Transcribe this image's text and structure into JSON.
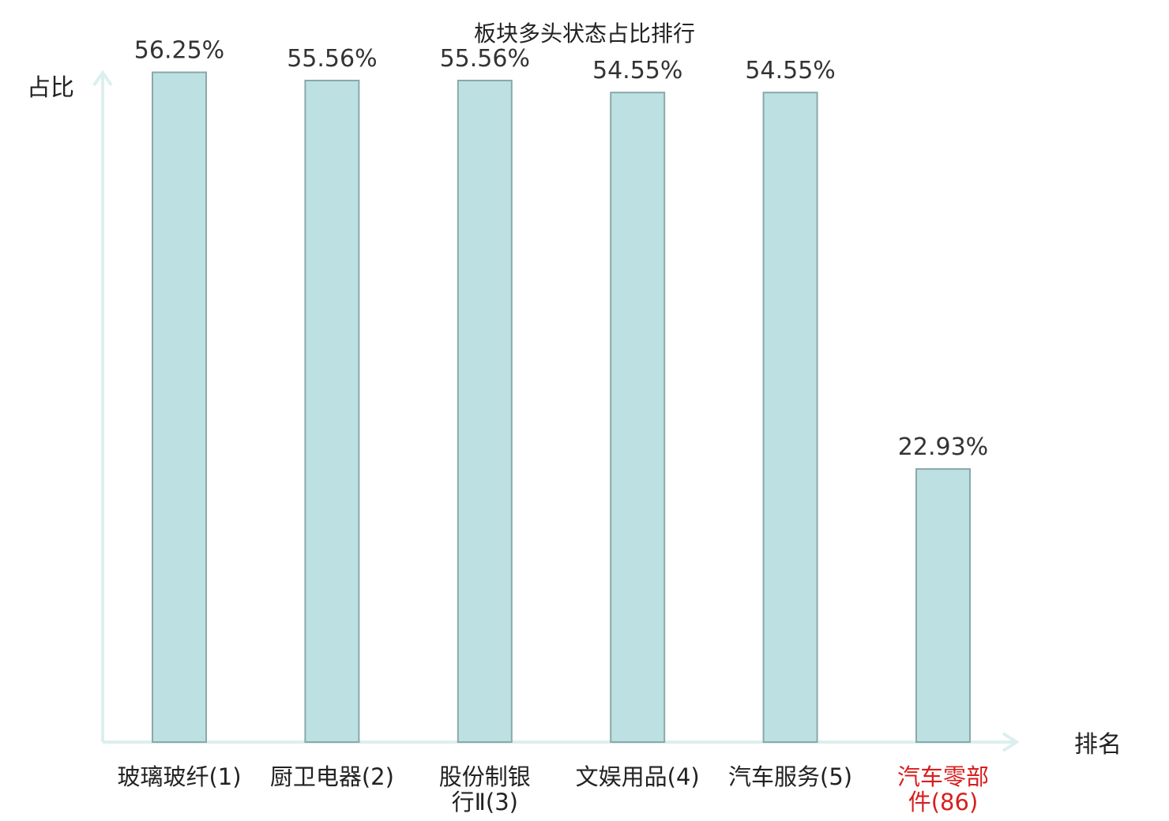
{
  "chart_data": {
    "type": "bar",
    "title": "板块多头状态占比排行",
    "ylabel": "占比",
    "xlabel": "排名",
    "ylim": [
      0,
      60
    ],
    "grid": false,
    "categories": [
      [
        "玻璃玻纤(1)"
      ],
      [
        "厨卫电器(2)"
      ],
      [
        "股份制银",
        "行Ⅱ(3)"
      ],
      [
        "文娱用品(4)"
      ],
      [
        "汽车服务(5)"
      ],
      [
        "汽车零部",
        "件(86)"
      ]
    ],
    "values": [
      56.25,
      55.56,
      55.56,
      54.55,
      54.55,
      22.93
    ],
    "value_labels": [
      "56.25%",
      "55.56%",
      "55.56%",
      "54.55%",
      "54.55%",
      "22.93%"
    ],
    "highlight_index": 5
  },
  "colors": {
    "bar_fill": "#bde0e2",
    "bar_stroke": "#8aa8aa",
    "axis": "#dcefee",
    "label_text": "#222222",
    "highlight_text": "#d81e1e"
  }
}
